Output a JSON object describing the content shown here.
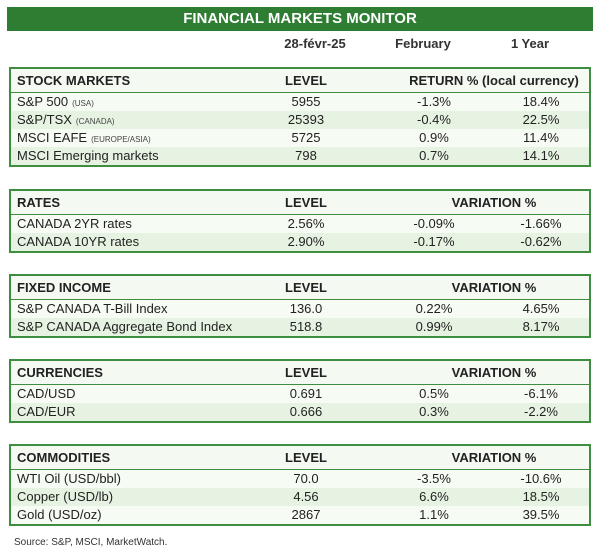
{
  "title": "FINANCIAL MARKETS MONITOR",
  "dates": {
    "date": "28-févr-25",
    "month": "February",
    "year": "1 Year"
  },
  "stock_markets": {
    "header": "STOCK MARKETS",
    "level_label": "LEVEL",
    "return_label": "RETURN % (local currency)",
    "rows": [
      {
        "name": "S&P 500",
        "region": "(USA)",
        "level": "5955",
        "month": "-1.3%",
        "year": "18.4%"
      },
      {
        "name": "S&P/TSX",
        "region": "(CANADA)",
        "level": "25393",
        "month": "-0.4%",
        "year": "22.5%"
      },
      {
        "name": "MSCI EAFE",
        "region": "(EUROPE/ASIA)",
        "level": "5725",
        "month": "0.9%",
        "year": "11.4%"
      },
      {
        "name": "MSCI Emerging markets",
        "region": "",
        "level": "798",
        "month": "0.7%",
        "year": "14.1%"
      }
    ]
  },
  "rates": {
    "header": "RATES",
    "level_label": "LEVEL",
    "variation_label": "VARIATION %",
    "rows": [
      {
        "name": "CANADA 2YR rates",
        "level": "2.56%",
        "month": "-0.09%",
        "year": "-1.66%"
      },
      {
        "name": "CANADA 10YR rates",
        "level": "2.90%",
        "month": "-0.17%",
        "year": "-0.62%"
      }
    ]
  },
  "fixed_income": {
    "header": "FIXED INCOME",
    "level_label": "LEVEL",
    "variation_label": "VARIATION %",
    "rows": [
      {
        "name": "S&P CANADA T-Bill Index",
        "level": "136.0",
        "month": "0.22%",
        "year": "4.65%"
      },
      {
        "name": "S&P CANADA Aggregate Bond Index",
        "level": "518.8",
        "month": "0.99%",
        "year": "8.17%"
      }
    ]
  },
  "currencies": {
    "header": "CURRENCIES",
    "level_label": "LEVEL",
    "variation_label": "VARIATION %",
    "rows": [
      {
        "name": "CAD/USD",
        "level": "0.691",
        "month": "0.5%",
        "year": "-6.1%"
      },
      {
        "name": "CAD/EUR",
        "level": "0.666",
        "month": "0.3%",
        "year": "-2.2%"
      }
    ]
  },
  "commodities": {
    "header": "COMMODITIES",
    "level_label": "LEVEL",
    "variation_label": "VARIATION %",
    "rows": [
      {
        "name": "WTI Oil (USD/bbl)",
        "level": "70.0",
        "month": "-3.5%",
        "year": "-10.6%"
      },
      {
        "name": "Copper (USD/lb)",
        "level": "4.56",
        "month": "6.6%",
        "year": "18.5%"
      },
      {
        "name": "Gold (USD/oz)",
        "level": "2867",
        "month": "1.1%",
        "year": "39.5%"
      }
    ]
  },
  "source": "Source: S&P, MSCI, MarketWatch."
}
